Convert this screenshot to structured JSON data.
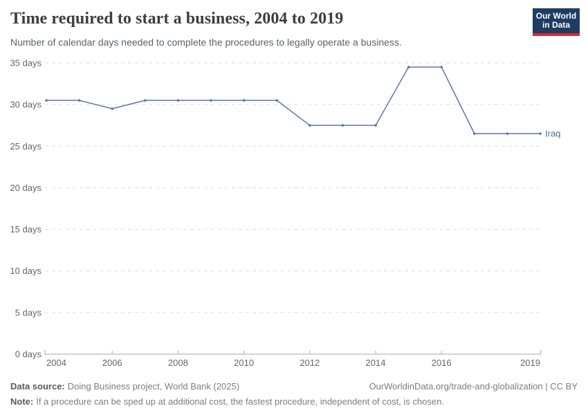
{
  "header": {
    "title": "Time required to start a business, 2004 to 2019",
    "subtitle": "Number of calendar days needed to complete the procedures to legally operate a business.",
    "logo": {
      "line1": "Our World",
      "line2": "in Data"
    }
  },
  "chart_data": {
    "type": "line",
    "x": [
      2004,
      2005,
      2006,
      2007,
      2008,
      2009,
      2010,
      2011,
      2012,
      2013,
      2014,
      2015,
      2016,
      2017,
      2018,
      2019
    ],
    "series": [
      {
        "name": "Iraq",
        "values": [
          30.5,
          30.5,
          29.5,
          30.5,
          30.5,
          30.5,
          30.5,
          30.5,
          27.5,
          27.5,
          27.5,
          34.5,
          34.5,
          26.5,
          26.5,
          26.5
        ]
      }
    ],
    "title": "Time required to start a business, 2004 to 2019",
    "xlabel": "",
    "ylabel": "",
    "xlim": [
      2004,
      2019
    ],
    "ylim": [
      0,
      35
    ],
    "x_ticks": [
      2004,
      2006,
      2008,
      2010,
      2012,
      2014,
      2016,
      2019
    ],
    "y_ticks": [
      0,
      5,
      10,
      15,
      20,
      25,
      30,
      35
    ],
    "y_tick_suffix": " days",
    "grid": "horizontal-dashed",
    "legend_position": "end-of-line-label",
    "end_label": "Iraq"
  },
  "footer": {
    "source_label": "Data source:",
    "source_text": "Doing Business project, World Bank (2025)",
    "right_text": "OurWorldinData.org/trade-and-globalization | CC BY",
    "note_label": "Note:",
    "note_text": "If a procedure can be sped up at additional cost, the fastest procedure, independent of cost, is chosen."
  },
  "colors": {
    "series": "#5878a8",
    "series_label": "#4c6a9c",
    "grid": "#dddddd",
    "axis": "#a8a8a8",
    "brand_navy": "#1d3d63",
    "brand_red": "#d42b2b"
  }
}
